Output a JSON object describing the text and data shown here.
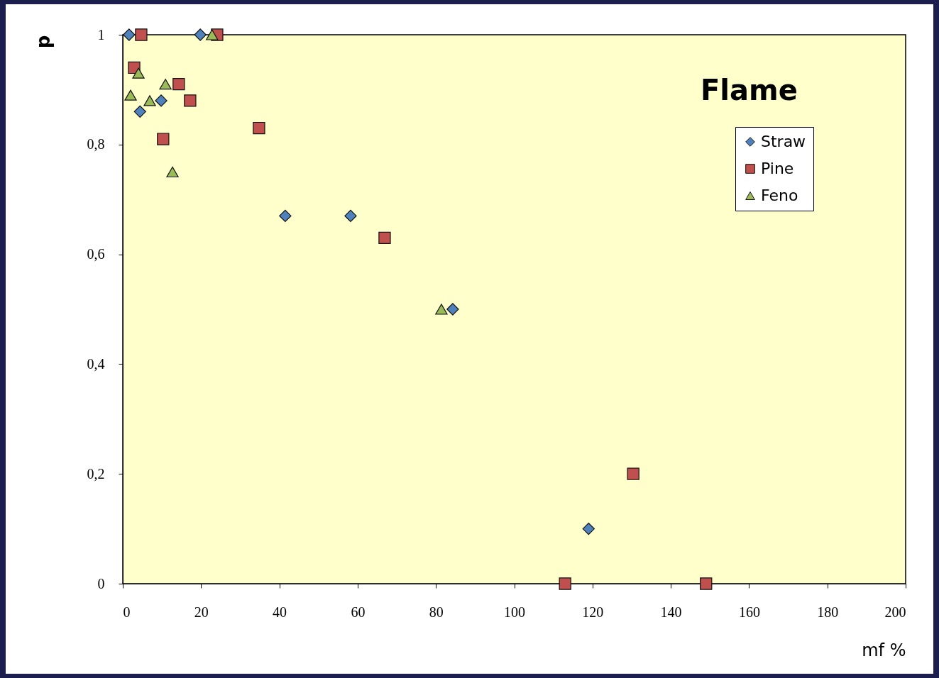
{
  "chart_data": {
    "type": "scatter",
    "xlabel": "mf   %",
    "ylabel": "p",
    "annotations": [
      "Flame"
    ],
    "xlim": [
      0,
      200
    ],
    "xticks": [
      0,
      20,
      40,
      60,
      80,
      100,
      120,
      140,
      160,
      180,
      200
    ],
    "ylim": [
      0,
      1
    ],
    "yticks": [
      0,
      {
        "value": 0.2,
        "label": "0,2"
      },
      {
        "value": 0.4,
        "label": "0,4"
      },
      {
        "value": 0.6,
        "label": "0,6"
      },
      {
        "value": 0.8,
        "label": "0,8"
      },
      1
    ],
    "grid": false,
    "legend": "top right",
    "series": [
      {
        "name": "Straw",
        "color": "#4f81bd",
        "marker": "diamond",
        "x": [
          1.6,
          4.4,
          9.8,
          19.8,
          41.5,
          58.2,
          84.3,
          119
        ],
        "values": [
          1,
          0.86,
          0.88,
          1,
          0.67,
          0.67,
          0.5,
          0.1
        ]
      },
      {
        "name": "Pine",
        "color": "#c0504d",
        "marker": "square",
        "x": [
          4.7,
          2.9,
          10.3,
          14.3,
          17.2,
          24.1,
          34.8,
          66.9,
          113,
          130.4,
          149
        ],
        "values": [
          1,
          0.94,
          0.81,
          0.91,
          0.88,
          1,
          0.83,
          0.63,
          0,
          0.2,
          0
        ]
      },
      {
        "name": "Feno",
        "color": "#9bbb59",
        "marker": "triangle",
        "x": [
          2,
          4,
          6.9,
          10.9,
          12.7,
          22.8,
          81.4
        ],
        "values": [
          0.89,
          0.93,
          0.88,
          0.91,
          0.75,
          1,
          0.5
        ]
      }
    ]
  }
}
